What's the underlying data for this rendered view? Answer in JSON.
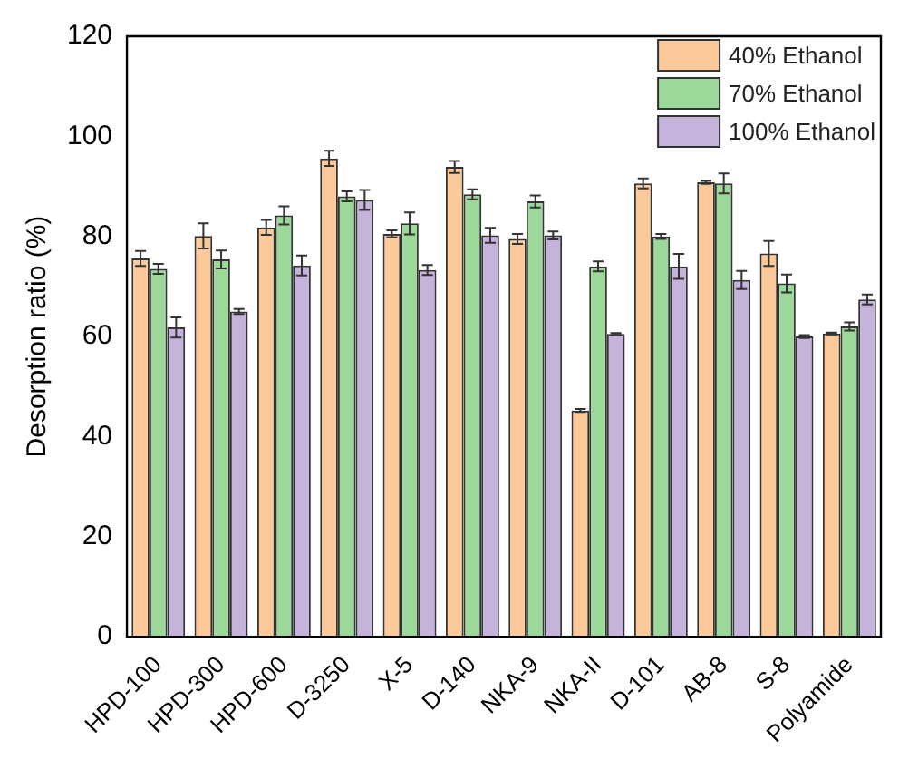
{
  "chart_data": {
    "type": "bar",
    "ylabel": "Desorption ratio (%)",
    "categories": [
      "HPD-100",
      "HPD-300",
      "HPD-600",
      "D-3250",
      "X-5",
      "D-140",
      "NKA-9",
      "NKA-II",
      "D-101",
      "AB-8",
      "S-8",
      "Polyamide"
    ],
    "series": [
      {
        "name": "40% Ethanol",
        "color": "#fcc99a",
        "values": [
          75.6,
          80.1,
          81.8,
          95.6,
          80.5,
          93.9,
          79.5,
          45.2,
          90.6,
          90.8,
          76.6,
          60.6
        ],
        "errors": [
          1.5,
          2.5,
          1.5,
          1.5,
          0.7,
          1.2,
          1,
          0.3,
          1,
          0.3,
          2.5,
          0.2
        ]
      },
      {
        "name": "70% Ethanol",
        "color": "#9dd89b",
        "values": [
          73.5,
          75.4,
          84.2,
          88,
          82.6,
          88.4,
          87,
          74,
          80,
          90.6,
          70.6,
          62
        ],
        "errors": [
          1,
          1.8,
          1.8,
          1,
          2.2,
          1,
          1.2,
          1,
          0.5,
          2,
          1.8,
          0.8
        ]
      },
      {
        "name": "100% Ethanol",
        "color": "#c5b3dc",
        "values": [
          61.8,
          65,
          74.2,
          87.3,
          73.3,
          80.2,
          80.2,
          60.5,
          74,
          71.3,
          60,
          67.4
        ],
        "errors": [
          2,
          0.5,
          2,
          2,
          1,
          1.5,
          0.8,
          0.2,
          2.5,
          1.8,
          0.3,
          1
        ]
      }
    ],
    "ylim": [
      0,
      120
    ],
    "yticks": [
      0,
      20,
      40,
      60,
      80,
      100,
      120
    ],
    "grid": false,
    "legend": "top right"
  }
}
